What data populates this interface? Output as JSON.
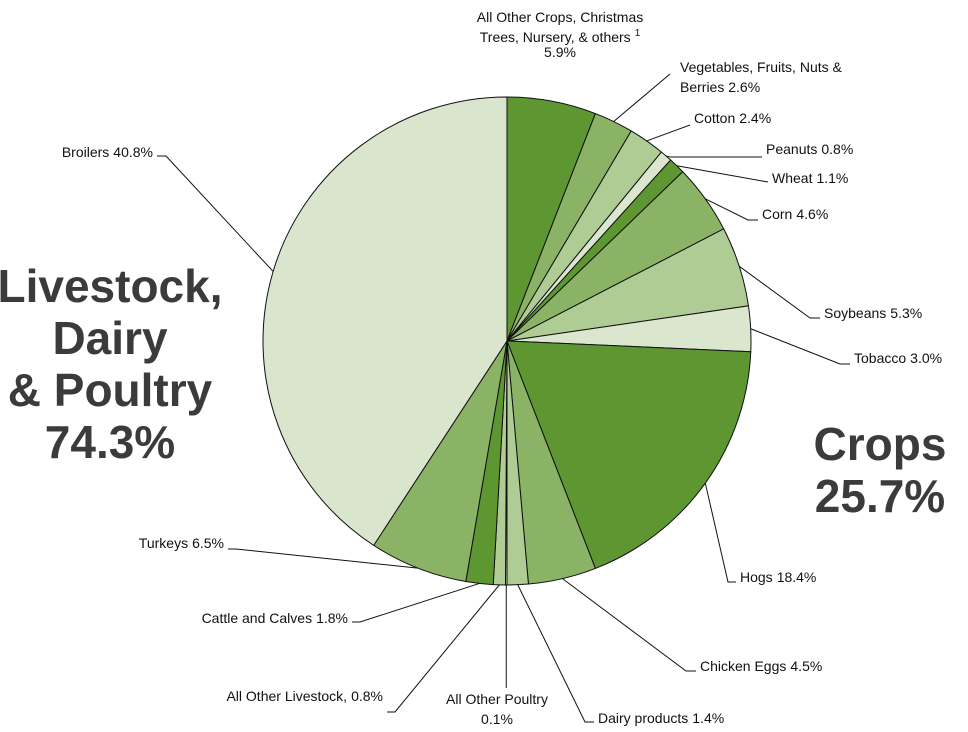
{
  "chart_data": {
    "type": "pie",
    "categories": [
      "All Other Crops, Christmas Trees, Nursery, & others",
      "Vegetables, Fruits, Nuts & Berries",
      "Cotton",
      "Peanuts",
      "Wheat",
      "Corn",
      "Soybeans",
      "Tobacco",
      "Hogs",
      "Chicken Eggs",
      "Dairy products",
      "All Other Poultry",
      "All Other Livestock,",
      "Cattle and Calves",
      "Turkeys",
      "Broilers"
    ],
    "values": [
      5.9,
      2.6,
      2.4,
      0.8,
      1.1,
      4.6,
      5.3,
      3.0,
      18.4,
      4.5,
      1.4,
      0.1,
      0.8,
      1.8,
      6.5,
      40.8
    ],
    "value_labels": [
      "5.9%",
      "2.6%",
      "2.4%",
      "0.8%",
      "1.1%",
      "4.6%",
      "5.3%",
      "3.0%",
      "18.4%",
      "4.5%",
      "1.4%",
      "0.1%",
      "0.8%",
      "1.8%",
      "6.5%",
      "40.8%"
    ],
    "colors": [
      "#5e9732",
      "#8ab366",
      "#afcc95",
      "#dbe6cf",
      "#5e9732",
      "#8ab366",
      "#afcc95",
      "#dbe6cf",
      "#5e9732",
      "#8ab366",
      "#afcc95",
      "#dbe6cf",
      "#afcc95",
      "#5e9732",
      "#8ab366",
      "#d9e5cc"
    ],
    "footnote_mark": "1",
    "annotations": [
      {
        "lines": [
          "Livestock,",
          "Dairy",
          "& Poultry",
          "74.3%"
        ]
      },
      {
        "lines": [
          "Crops",
          "25.7%"
        ]
      }
    ]
  }
}
